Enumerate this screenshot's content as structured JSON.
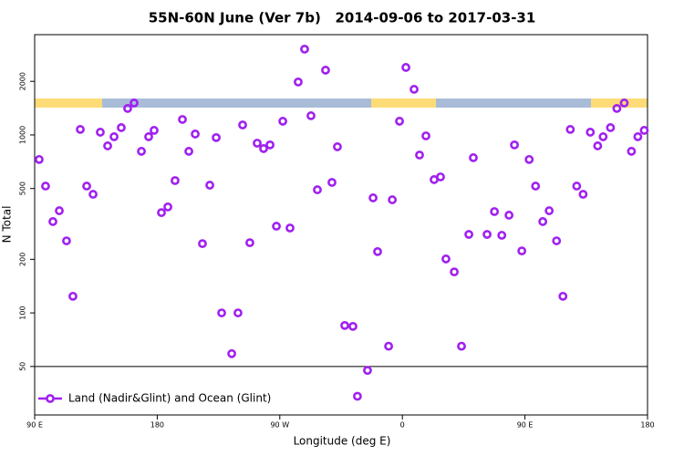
{
  "chart_data": {
    "type": "scatter",
    "title": "55N-60N June (Ver 7b)   2014-09-06 to 2017-03-31",
    "x_label": "Longitude (deg E)",
    "y_label": "N Total",
    "xlim": [
      -270,
      180
    ],
    "xticks": [
      {
        "value": -270,
        "label": "90 E"
      },
      {
        "value": -180,
        "label": "180"
      },
      {
        "value": -90,
        "label": "90 W"
      },
      0,
      {
        "value": 90,
        "label": "90 E"
      },
      180
    ],
    "ylim": [
      26.7,
      3660
    ],
    "yticks": [
      50,
      100,
      200,
      500,
      1000,
      2000
    ],
    "log_y": true,
    "reference_line": 50,
    "legend": "bottom-left",
    "series": [
      {
        "name": "Land (Nadir&Glint) and Ocean (Glint)",
        "color": "#a020f0",
        "x": [
          -266.7,
          -262,
          -256.6,
          -251.9,
          -246.6,
          -241.9,
          -236.5,
          -231.8,
          -227.1,
          -221.8,
          -216.4,
          -211.7,
          -206.4,
          -201.7,
          -197,
          -191.6,
          -186.3,
          -182.3,
          -176.9,
          -172.2,
          -166.9,
          -161.5,
          -156.8,
          -152.1,
          -146.8,
          -141.4,
          -136.7,
          -132.7,
          -125.3,
          -120.7,
          -117.3,
          -112,
          -106.6,
          -101.9,
          -97.2,
          -92.5,
          -87.8,
          -82.5,
          -76.5,
          -71.8,
          -67.1,
          -62.4,
          -56.4,
          -51.7,
          -47.7,
          -42.3,
          -36.3,
          -33,
          -25.6,
          -21.5,
          -18.2,
          -10.1,
          -7.4,
          -2.1,
          2.6,
          8.6,
          12.6,
          17.3,
          23.3,
          28,
          32,
          38.1,
          43.4,
          48.8,
          52.1,
          62.2,
          67.6,
          73,
          78.3,
          82.3,
          87.7,
          93.1,
          97.8,
          103.1,
          107.8,
          113.2,
          117.9,
          123.3,
          128,
          132.7,
          138,
          143.4,
          147.4,
          152.8,
          157.5,
          162.9,
          168.2,
          172.9,
          177.6
        ],
        "values": [
          728,
          516,
          326,
          375,
          254,
          124,
          1074,
          516,
          464,
          1036,
          868,
          977,
          1099,
          1409,
          1512,
          809,
          977,
          1061,
          366,
          394,
          554,
          1222,
          809,
          1012,
          245,
          522,
          966,
          100,
          59,
          100,
          1138,
          248,
          899,
          838,
          879,
          307,
          1194,
          300,
          1984,
          3034,
          1282,
          492,
          2312,
          541,
          858,
          85,
          84,
          34,
          47.5,
          443,
          221,
          65,
          432,
          1194,
          2395,
          1805,
          771,
          988,
          561,
          581,
          201,
          170,
          65,
          276,
          745,
          276,
          371,
          273,
          354,
          879,
          223,
          728,
          516,
          326,
          375,
          254,
          124,
          1074,
          516,
          464,
          1036,
          868,
          977,
          1099,
          1409,
          1512,
          809,
          977,
          1061
        ]
      }
    ]
  }
}
